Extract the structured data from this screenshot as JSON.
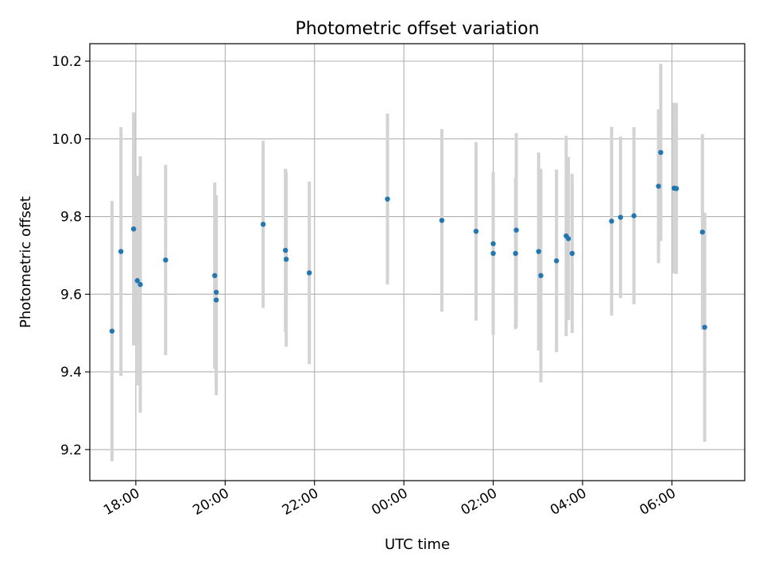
{
  "chart_data": {
    "type": "scatter",
    "title": "Photometric offset variation",
    "xlabel": "UTC time",
    "ylabel": "Photometric offset",
    "x_tick_labels": [
      "18:00",
      "20:00",
      "22:00",
      "00:00",
      "02:00",
      "04:00",
      "06:00"
    ],
    "x_tick_hours": [
      18,
      20,
      22,
      24,
      26,
      28,
      30
    ],
    "y_tick_labels": [
      "9.2",
      "9.4",
      "9.6",
      "9.8",
      "10.0",
      "10.2"
    ],
    "y_tick_values": [
      9.2,
      9.4,
      9.6,
      9.8,
      10.0,
      10.2
    ],
    "xlim_hours": [
      16.97,
      31.63
    ],
    "ylim": [
      9.12,
      10.245
    ],
    "grid": true,
    "colors": {
      "point": "#1f77b4",
      "error_bar": "#d3d3d3",
      "grid": "#b0b0b0"
    },
    "series": [
      {
        "points": [
          {
            "t": "17:28",
            "y": 9.505,
            "err": 0.335
          },
          {
            "t": "17:40",
            "y": 9.71,
            "err": 0.32
          },
          {
            "t": "17:57",
            "y": 9.768,
            "err": 0.3
          },
          {
            "t": "18:02",
            "y": 9.635,
            "err": 0.27
          },
          {
            "t": "18:06",
            "y": 9.625,
            "err": 0.33
          },
          {
            "t": "18:40",
            "y": 9.688,
            "err": 0.245
          },
          {
            "t": "19:46",
            "y": 9.648,
            "err": 0.24
          },
          {
            "t": "19:48",
            "y": 9.605,
            "err": 0.25
          },
          {
            "t": "19:48",
            "y": 9.585,
            "err": 0.245
          },
          {
            "t": "20:51",
            "y": 9.78,
            "err": 0.215
          },
          {
            "t": "21:21",
            "y": 9.713,
            "err": 0.21
          },
          {
            "t": "21:22",
            "y": 9.69,
            "err": 0.225
          },
          {
            "t": "21:53",
            "y": 9.655,
            "err": 0.235
          },
          {
            "t": "23:38",
            "y": 9.845,
            "err": 0.22
          },
          {
            "t": "00:51",
            "y": 9.79,
            "err": 0.235
          },
          {
            "t": "01:37",
            "y": 9.762,
            "err": 0.23
          },
          {
            "t": "02:00",
            "y": 9.73,
            "err": 0.185
          },
          {
            "t": "02:00",
            "y": 9.705,
            "err": 0.21
          },
          {
            "t": "02:30",
            "y": 9.705,
            "err": 0.195
          },
          {
            "t": "02:31",
            "y": 9.765,
            "err": 0.25
          },
          {
            "t": "03:01",
            "y": 9.71,
            "err": 0.255
          },
          {
            "t": "03:04",
            "y": 9.648,
            "err": 0.275
          },
          {
            "t": "03:25",
            "y": 9.686,
            "err": 0.235
          },
          {
            "t": "03:38",
            "y": 9.75,
            "err": 0.258
          },
          {
            "t": "03:41",
            "y": 9.743,
            "err": 0.21
          },
          {
            "t": "03:46",
            "y": 9.705,
            "err": 0.205
          },
          {
            "t": "04:39",
            "y": 9.788,
            "err": 0.243
          },
          {
            "t": "04:51",
            "y": 9.798,
            "err": 0.208
          },
          {
            "t": "05:09",
            "y": 9.802,
            "err": 0.228
          },
          {
            "t": "05:42",
            "y": 9.878,
            "err": 0.198
          },
          {
            "t": "05:45",
            "y": 9.965,
            "err": 0.228
          },
          {
            "t": "06:03",
            "y": 9.873,
            "err": 0.22
          },
          {
            "t": "06:06",
            "y": 9.872,
            "err": 0.22
          },
          {
            "t": "06:41",
            "y": 9.76,
            "err": 0.252
          },
          {
            "t": "06:44",
            "y": 9.515,
            "err": 0.295
          }
        ]
      }
    ]
  }
}
